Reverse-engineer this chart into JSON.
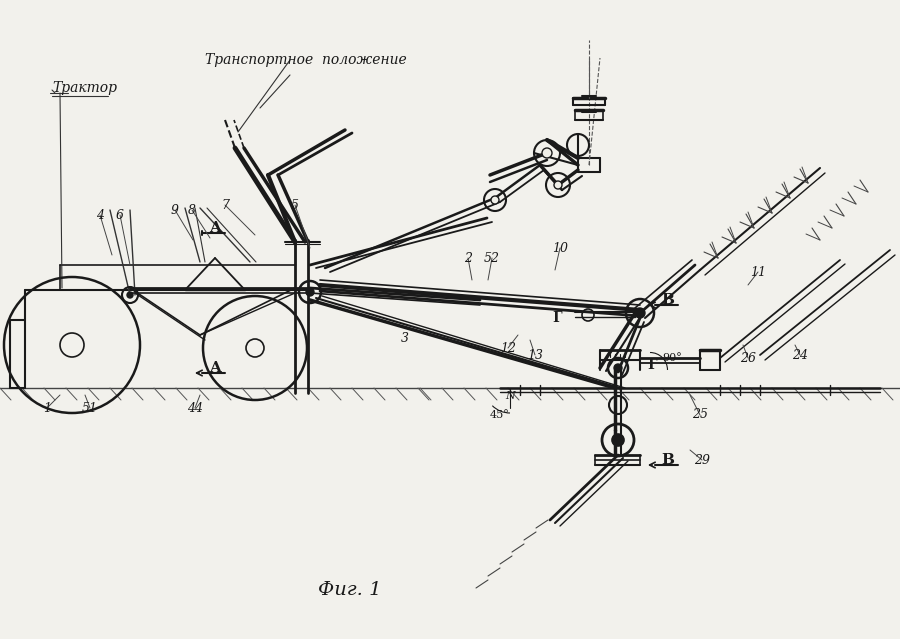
{
  "bg_color": "#f0efe8",
  "line_color": "#1a1a1a",
  "title": "Фиг. 1",
  "label_transport": "Транспортное  положение",
  "label_traktor": "Трактор"
}
